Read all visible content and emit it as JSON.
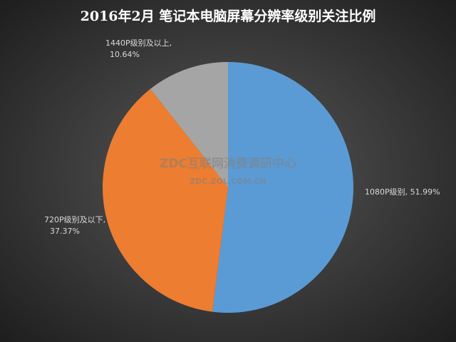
{
  "chart_data": {
    "type": "pie",
    "title": "2016年2月 笔记本电脑屏幕分辨率级别关注比例",
    "values": [
      51.99,
      37.37,
      10.64
    ],
    "value_labels": [
      [
        "1080P级别, 51.99%"
      ],
      [
        "720P级别及以下,",
        "37.37%"
      ],
      [
        "1440P级别及以上,",
        "10.64%"
      ]
    ],
    "colors": [
      "#5b9bd5",
      "#ed7d31",
      "#a5a5a5"
    ],
    "watermark": "ZDC互联网消费调研中心",
    "watermark_url": "ZDC.ZOL.COM.CN"
  }
}
